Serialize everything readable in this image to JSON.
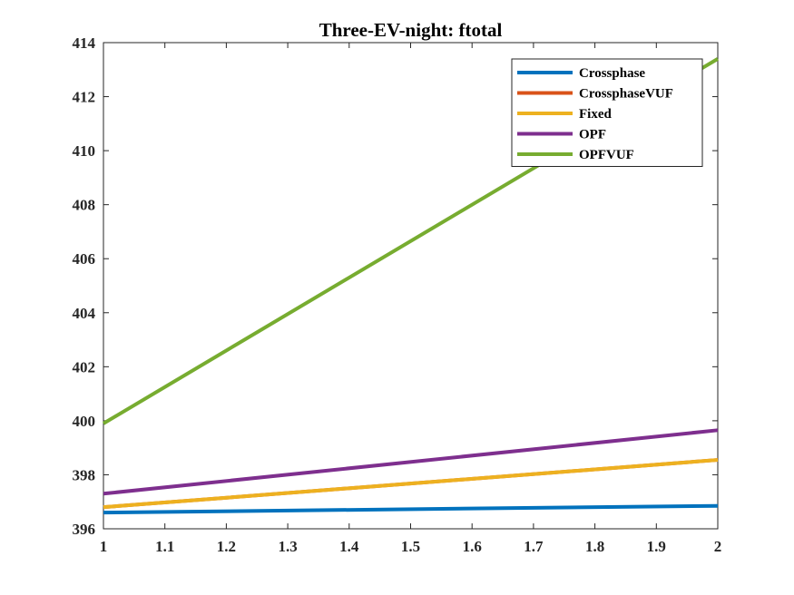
{
  "chart_data": {
    "type": "line",
    "title": "Three-EV-night: ftotal",
    "xlabel": "",
    "ylabel": "",
    "x": [
      1,
      2
    ],
    "xlim": [
      1,
      2
    ],
    "ylim": [
      396,
      414
    ],
    "xticks": [
      "1",
      "1.1",
      "1.2",
      "1.3",
      "1.4",
      "1.5",
      "1.6",
      "1.7",
      "1.8",
      "1.9",
      "2"
    ],
    "yticks": [
      "396",
      "398",
      "400",
      "402",
      "404",
      "406",
      "408",
      "410",
      "412",
      "414"
    ],
    "grid": false,
    "legend_position": "top-right",
    "series": [
      {
        "name": "Crossphase",
        "color": "#0072BD",
        "values": [
          396.6,
          396.85
        ]
      },
      {
        "name": "CrossphaseVUF",
        "color": "#D95319",
        "values": [
          396.8,
          398.55
        ]
      },
      {
        "name": "Fixed",
        "color": "#EDB120",
        "values": [
          396.8,
          398.55
        ]
      },
      {
        "name": "OPF",
        "color": "#7E2F8E",
        "values": [
          397.3,
          399.65
        ]
      },
      {
        "name": "OPFVUF",
        "color": "#77AC30",
        "values": [
          399.9,
          413.4
        ]
      }
    ]
  }
}
